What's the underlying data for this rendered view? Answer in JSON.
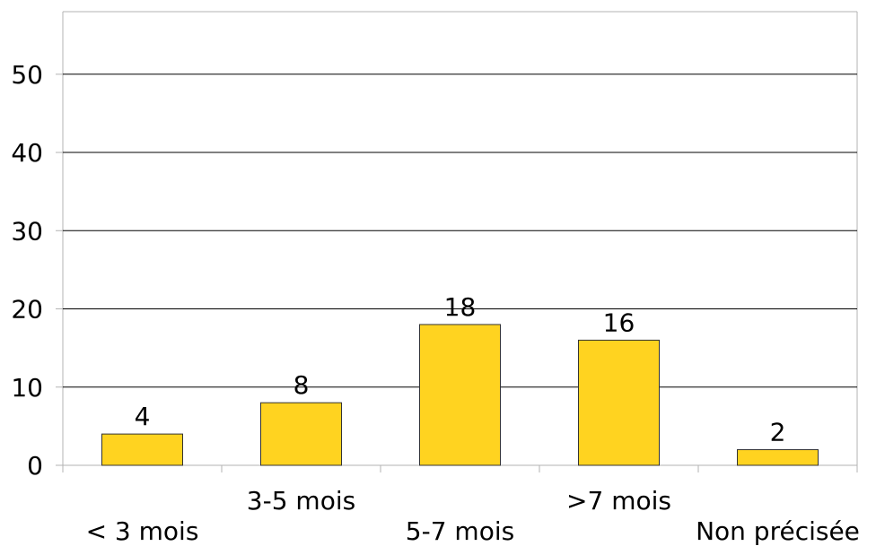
{
  "chart_data": {
    "type": "bar",
    "categories": [
      "< 3 mois",
      "3-5 mois",
      "5-7 mois",
      ">7 mois",
      "Non précisée"
    ],
    "values": [
      4,
      8,
      18,
      16,
      2
    ],
    "data_labels": [
      "4",
      "8",
      "18",
      "16",
      "2"
    ],
    "ylim": [
      0,
      58
    ],
    "yticks": [
      0,
      10,
      20,
      30,
      40,
      50
    ],
    "ytick_labels": [
      "0",
      "10",
      "20",
      "30",
      "40",
      "50"
    ],
    "grid": true,
    "legend": "none",
    "colors": {
      "bar_fill": "#FFD320",
      "bar_stroke": "#333333",
      "grid": "#000000",
      "frame": "#B3B3B3"
    }
  }
}
